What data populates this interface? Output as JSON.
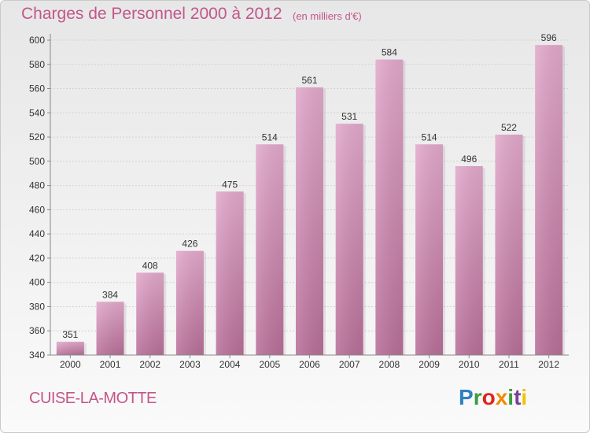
{
  "header": {
    "title": "Charges de Personnel 2000 à 2012",
    "subtitle": "(en milliers d'€)"
  },
  "footer": {
    "town": "CUISE-LA-MOTTE",
    "logo": "Proxiti",
    "logo_colors": [
      "#2f7fc1",
      "#3d9b3d",
      "#e2231a",
      "#f08a00",
      "#3d9b3d",
      "#7a3f98",
      "#f0c300"
    ]
  },
  "chart_data": {
    "type": "bar",
    "title": "Charges de Personnel 2000 à 2012",
    "subtitle": "(en milliers d'€)",
    "xlabel": "",
    "ylabel": "",
    "categories": [
      "2000",
      "2001",
      "2002",
      "2003",
      "2004",
      "2005",
      "2006",
      "2007",
      "2008",
      "2009",
      "2010",
      "2011",
      "2012"
    ],
    "values": [
      351,
      384,
      408,
      426,
      475,
      514,
      561,
      531,
      584,
      514,
      496,
      522,
      596
    ],
    "ylim": [
      340,
      600
    ],
    "yticks": [
      340,
      360,
      380,
      400,
      420,
      440,
      460,
      480,
      500,
      520,
      540,
      560,
      580,
      600
    ],
    "grid": true,
    "bar_color": "#d98fb6",
    "text_color": "#c2568a"
  }
}
